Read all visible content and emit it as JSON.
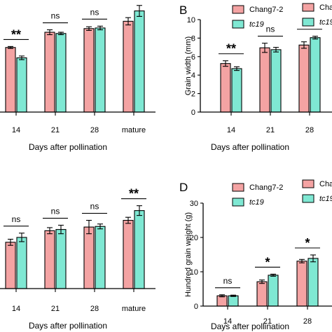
{
  "colors": {
    "series1": "#F4A3A3",
    "series2": "#7FE8D3",
    "axis": "#000000"
  },
  "chart_data": [
    {
      "type": "bar",
      "panel": "",
      "categories": [
        "14",
        "21",
        "28",
        "mature"
      ],
      "series": [
        {
          "name": "Chang7-2",
          "values": [
            5.3,
            6.55,
            6.85,
            7.45
          ],
          "errors": [
            0.08,
            0.2,
            0.15,
            0.3
          ]
        },
        {
          "name": "tc19",
          "values": [
            4.45,
            6.45,
            6.9,
            8.3
          ],
          "errors": [
            0.15,
            0.1,
            0.15,
            0.45
          ]
        }
      ],
      "significance": [
        "**",
        "ns",
        "ns",
        "**"
      ],
      "xlabel": "Days after pollination",
      "ylabel": "",
      "ylim": [
        0,
        10
      ],
      "legend": "top-right"
    },
    {
      "type": "bar",
      "panel": "B",
      "categories": [
        "14",
        "21",
        "28"
      ],
      "series": [
        {
          "name": "Chang7-2",
          "values": [
            5.25,
            6.95,
            7.25
          ],
          "errors": [
            0.3,
            0.5,
            0.35
          ]
        },
        {
          "name": "tc19",
          "values": [
            4.7,
            6.75,
            8.05
          ],
          "errors": [
            0.2,
            0.25,
            0.15
          ]
        }
      ],
      "significance": [
        "**",
        "ns",
        "*"
      ],
      "xlabel": "Days after pollination",
      "ylabel": "Grain width (mm)",
      "yticks": [
        "0",
        "2",
        "4",
        "6",
        "8",
        "10"
      ],
      "ylim": [
        0,
        10
      ],
      "legend": "top-right"
    },
    {
      "type": "bar",
      "panel": "",
      "categories": [
        "14",
        "21",
        "28",
        "mature"
      ],
      "series": [
        {
          "name": "Chang7-2",
          "values": [
            3.8,
            4.75,
            5.05,
            5.6
          ],
          "errors": [
            0.25,
            0.25,
            0.55,
            0.25
          ]
        },
        {
          "name": "tc19",
          "values": [
            4.2,
            4.85,
            5.1,
            6.4
          ],
          "errors": [
            0.35,
            0.35,
            0.2,
            0.4
          ]
        }
      ],
      "significance": [
        "ns",
        "ns",
        "ns",
        "**"
      ],
      "xlabel": "Days after pollination",
      "ylabel": "",
      "ylim": [
        0,
        10
      ],
      "legend": "top-right"
    },
    {
      "type": "bar",
      "panel": "D",
      "categories": [
        "14",
        "21",
        "28"
      ],
      "series": [
        {
          "name": "Chang7-2",
          "values": [
            3.0,
            7.1,
            13.1
          ],
          "errors": [
            0.3,
            0.5,
            0.5
          ]
        },
        {
          "name": "tc19",
          "values": [
            3.0,
            9.0,
            13.9
          ],
          "errors": [
            0.2,
            0.3,
            1.0
          ]
        }
      ],
      "significance": [
        "ns",
        "*",
        "*"
      ],
      "xlabel": "Days after pollination",
      "ylabel": "Hundred grain weight (g)",
      "yticks": [
        "0",
        "10",
        "20",
        "30"
      ],
      "ylim": [
        0,
        30
      ],
      "legend": "top-right"
    }
  ]
}
